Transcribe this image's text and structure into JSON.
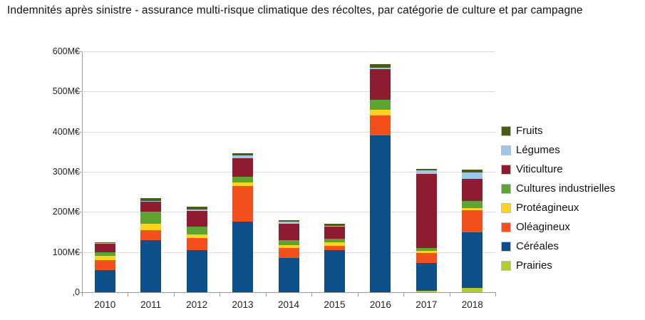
{
  "title": "Indemnités après sinistre - assurance multi-risque climatique des récoltes, par catégorie de culture et par campagne",
  "chart_data": {
    "type": "bar",
    "stacked": true,
    "title": "Indemnités après sinistre - assurance multi-risque climatique des récoltes, par catégorie de culture et par campagne",
    "categories": [
      "2010",
      "2011",
      "2012",
      "2013",
      "2014",
      "2015",
      "2016",
      "2017",
      "2018"
    ],
    "unit": "M€",
    "ylim": [
      0,
      600
    ],
    "grid": true,
    "legend_position": "right",
    "y_ticks": [
      {
        "value": 600,
        "label": "600M€"
      },
      {
        "value": 500,
        "label": "500M€"
      },
      {
        "value": 400,
        "label": "400M€"
      },
      {
        "value": 300,
        "label": "300M€"
      },
      {
        "value": 200,
        "label": "200M€"
      },
      {
        "value": 100,
        "label": "100M€"
      },
      {
        "value": 0,
        "label": ",0"
      }
    ],
    "series": [
      {
        "name": "Prairies",
        "color": "#b5cc2e",
        "values": [
          0,
          0,
          0,
          0,
          0,
          0,
          0,
          3,
          10
        ]
      },
      {
        "name": "Céréales",
        "color": "#0d4f8b",
        "values": [
          55,
          130,
          105,
          175,
          85,
          105,
          390,
          70,
          140
        ]
      },
      {
        "name": "Oléagineux",
        "color": "#f4501e",
        "values": [
          25,
          25,
          30,
          90,
          25,
          10,
          50,
          25,
          55
        ]
      },
      {
        "name": "Protéagineux",
        "color": "#ffd320",
        "values": [
          10,
          15,
          8,
          8,
          8,
          10,
          15,
          5,
          5
        ]
      },
      {
        "name": "Cultures industrielles",
        "color": "#5ea432",
        "values": [
          10,
          30,
          20,
          15,
          12,
          8,
          25,
          7,
          18
        ]
      },
      {
        "name": "Viticulture",
        "color": "#8e1b2f",
        "values": [
          20,
          25,
          40,
          45,
          40,
          30,
          75,
          185,
          55
        ]
      },
      {
        "name": "Légumes",
        "color": "#9cc7e8",
        "values": [
          2,
          3,
          3,
          8,
          5,
          3,
          5,
          8,
          15
        ]
      },
      {
        "name": "Fruits",
        "color": "#4a5b16",
        "values": [
          3,
          7,
          7,
          5,
          5,
          5,
          8,
          4,
          7
        ]
      }
    ],
    "legend_order_top_to_bottom": [
      "Fruits",
      "Légumes",
      "Viticulture",
      "Cultures industrielles",
      "Protéagineux",
      "Oléagineux",
      "Céréales",
      "Prairies"
    ]
  }
}
